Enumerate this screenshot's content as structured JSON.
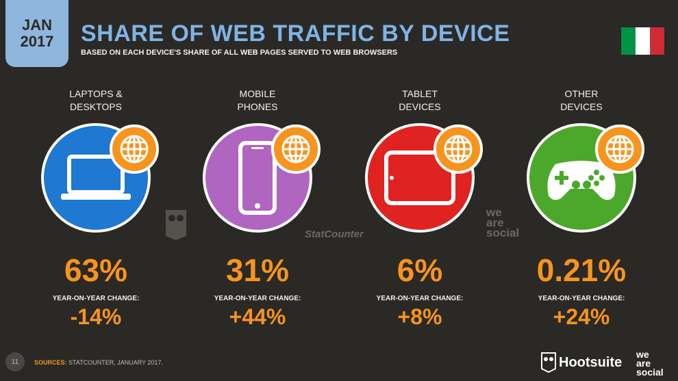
{
  "header": {
    "badge_month": "JAN",
    "badge_year": "2017",
    "title": "SHARE OF WEB TRAFFIC BY DEVICE",
    "subtitle": "BASED ON EACH DEVICE'S SHARE OF ALL WEB PAGES SERVED TO WEB BROWSERS",
    "flag_colors": [
      "#009246",
      "#ffffff",
      "#ce2b37"
    ]
  },
  "devices": [
    {
      "label": "LAPTOPS &\nDESKTOPS",
      "icon": "laptop-icon",
      "color": "#1f78d1",
      "share": "63%",
      "yoy_label": "YEAR-ON-YEAR CHANGE:",
      "yoy": "-14%"
    },
    {
      "label": "MOBILE\nPHONES",
      "icon": "mobile-phone-icon",
      "color": "#b065c1",
      "share": "31%",
      "yoy_label": "YEAR-ON-YEAR CHANGE:",
      "yoy": "+44%"
    },
    {
      "label": "TABLET\nDEVICES",
      "icon": "tablet-icon",
      "color": "#e02320",
      "share": "6%",
      "yoy_label": "YEAR-ON-YEAR CHANGE:",
      "yoy": "+8%"
    },
    {
      "label": "OTHER\nDEVICES",
      "icon": "gamepad-icon",
      "color": "#4ca82b",
      "share": "0.21%",
      "yoy_label": "YEAR-ON-YEAR CHANGE:",
      "yoy": "+24%"
    }
  ],
  "watermarks": {
    "statcounter": "StatCounter",
    "we_are_social": "we\nare\nsocial"
  },
  "footer": {
    "page_number": "11",
    "sources_label": "SOURCES:",
    "sources_text": "STATCOUNTER, JANUARY 2017.",
    "hootsuite": "Hootsuite",
    "was_logo": "we\nare\nsocial"
  },
  "accent": "#f7941d"
}
